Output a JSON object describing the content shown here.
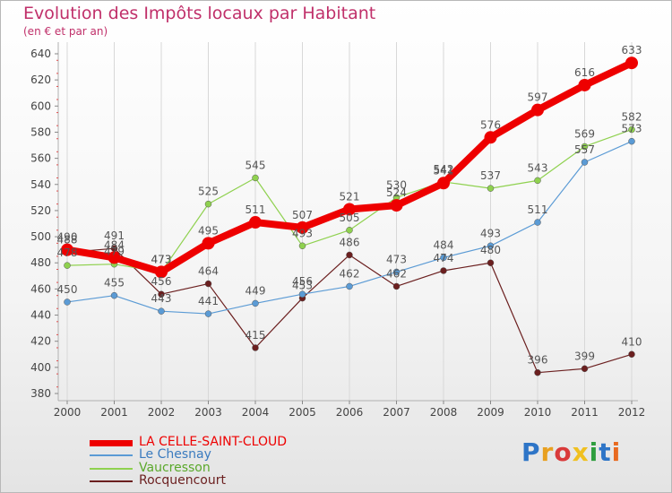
{
  "chart_data": {
    "type": "line",
    "title": "Evolution des Impôts locaux par Habitant",
    "subtitle": "(en € et par an)",
    "x": [
      "2000",
      "2001",
      "2002",
      "2003",
      "2004",
      "2005",
      "2006",
      "2007",
      "2008",
      "2009",
      "2010",
      "2011",
      "2012"
    ],
    "ylim": [
      380,
      640
    ],
    "yticks": [
      380,
      400,
      420,
      440,
      460,
      480,
      500,
      520,
      540,
      560,
      580,
      600,
      620,
      640
    ],
    "grid": "vertical",
    "legend_position": "bottom-left",
    "series": [
      {
        "name": "LA CELLE-SAINT-CLOUD",
        "color": "#ee0000",
        "values": [
          490,
          484,
          473,
          495,
          511,
          507,
          521,
          524,
          541,
          576,
          597,
          616,
          633
        ]
      },
      {
        "name": "Le Chesnay",
        "color": "#5b9bd5",
        "values": [
          450,
          455,
          443,
          441,
          449,
          456,
          462,
          473,
          484,
          493,
          511,
          557,
          573
        ]
      },
      {
        "name": "Vaucresson",
        "color": "#8fd14f",
        "values": [
          478,
          479,
          473,
          525,
          545,
          493,
          505,
          530,
          542,
          537,
          543,
          569,
          582
        ]
      },
      {
        "name": "Rocquencourt",
        "color": "#6b1f1f",
        "values": [
          488,
          491,
          456,
          464,
          415,
          453,
          486,
          462,
          474,
          480,
          396,
          399,
          410
        ]
      }
    ]
  },
  "logo": {
    "text": "Proxiti",
    "letters": [
      "P",
      "r",
      "o",
      "x",
      "i",
      "t",
      "i"
    ]
  },
  "colors": {
    "title": "#c0306a",
    "axis": "#b0b0b0",
    "grid": "#d8d8d8"
  }
}
